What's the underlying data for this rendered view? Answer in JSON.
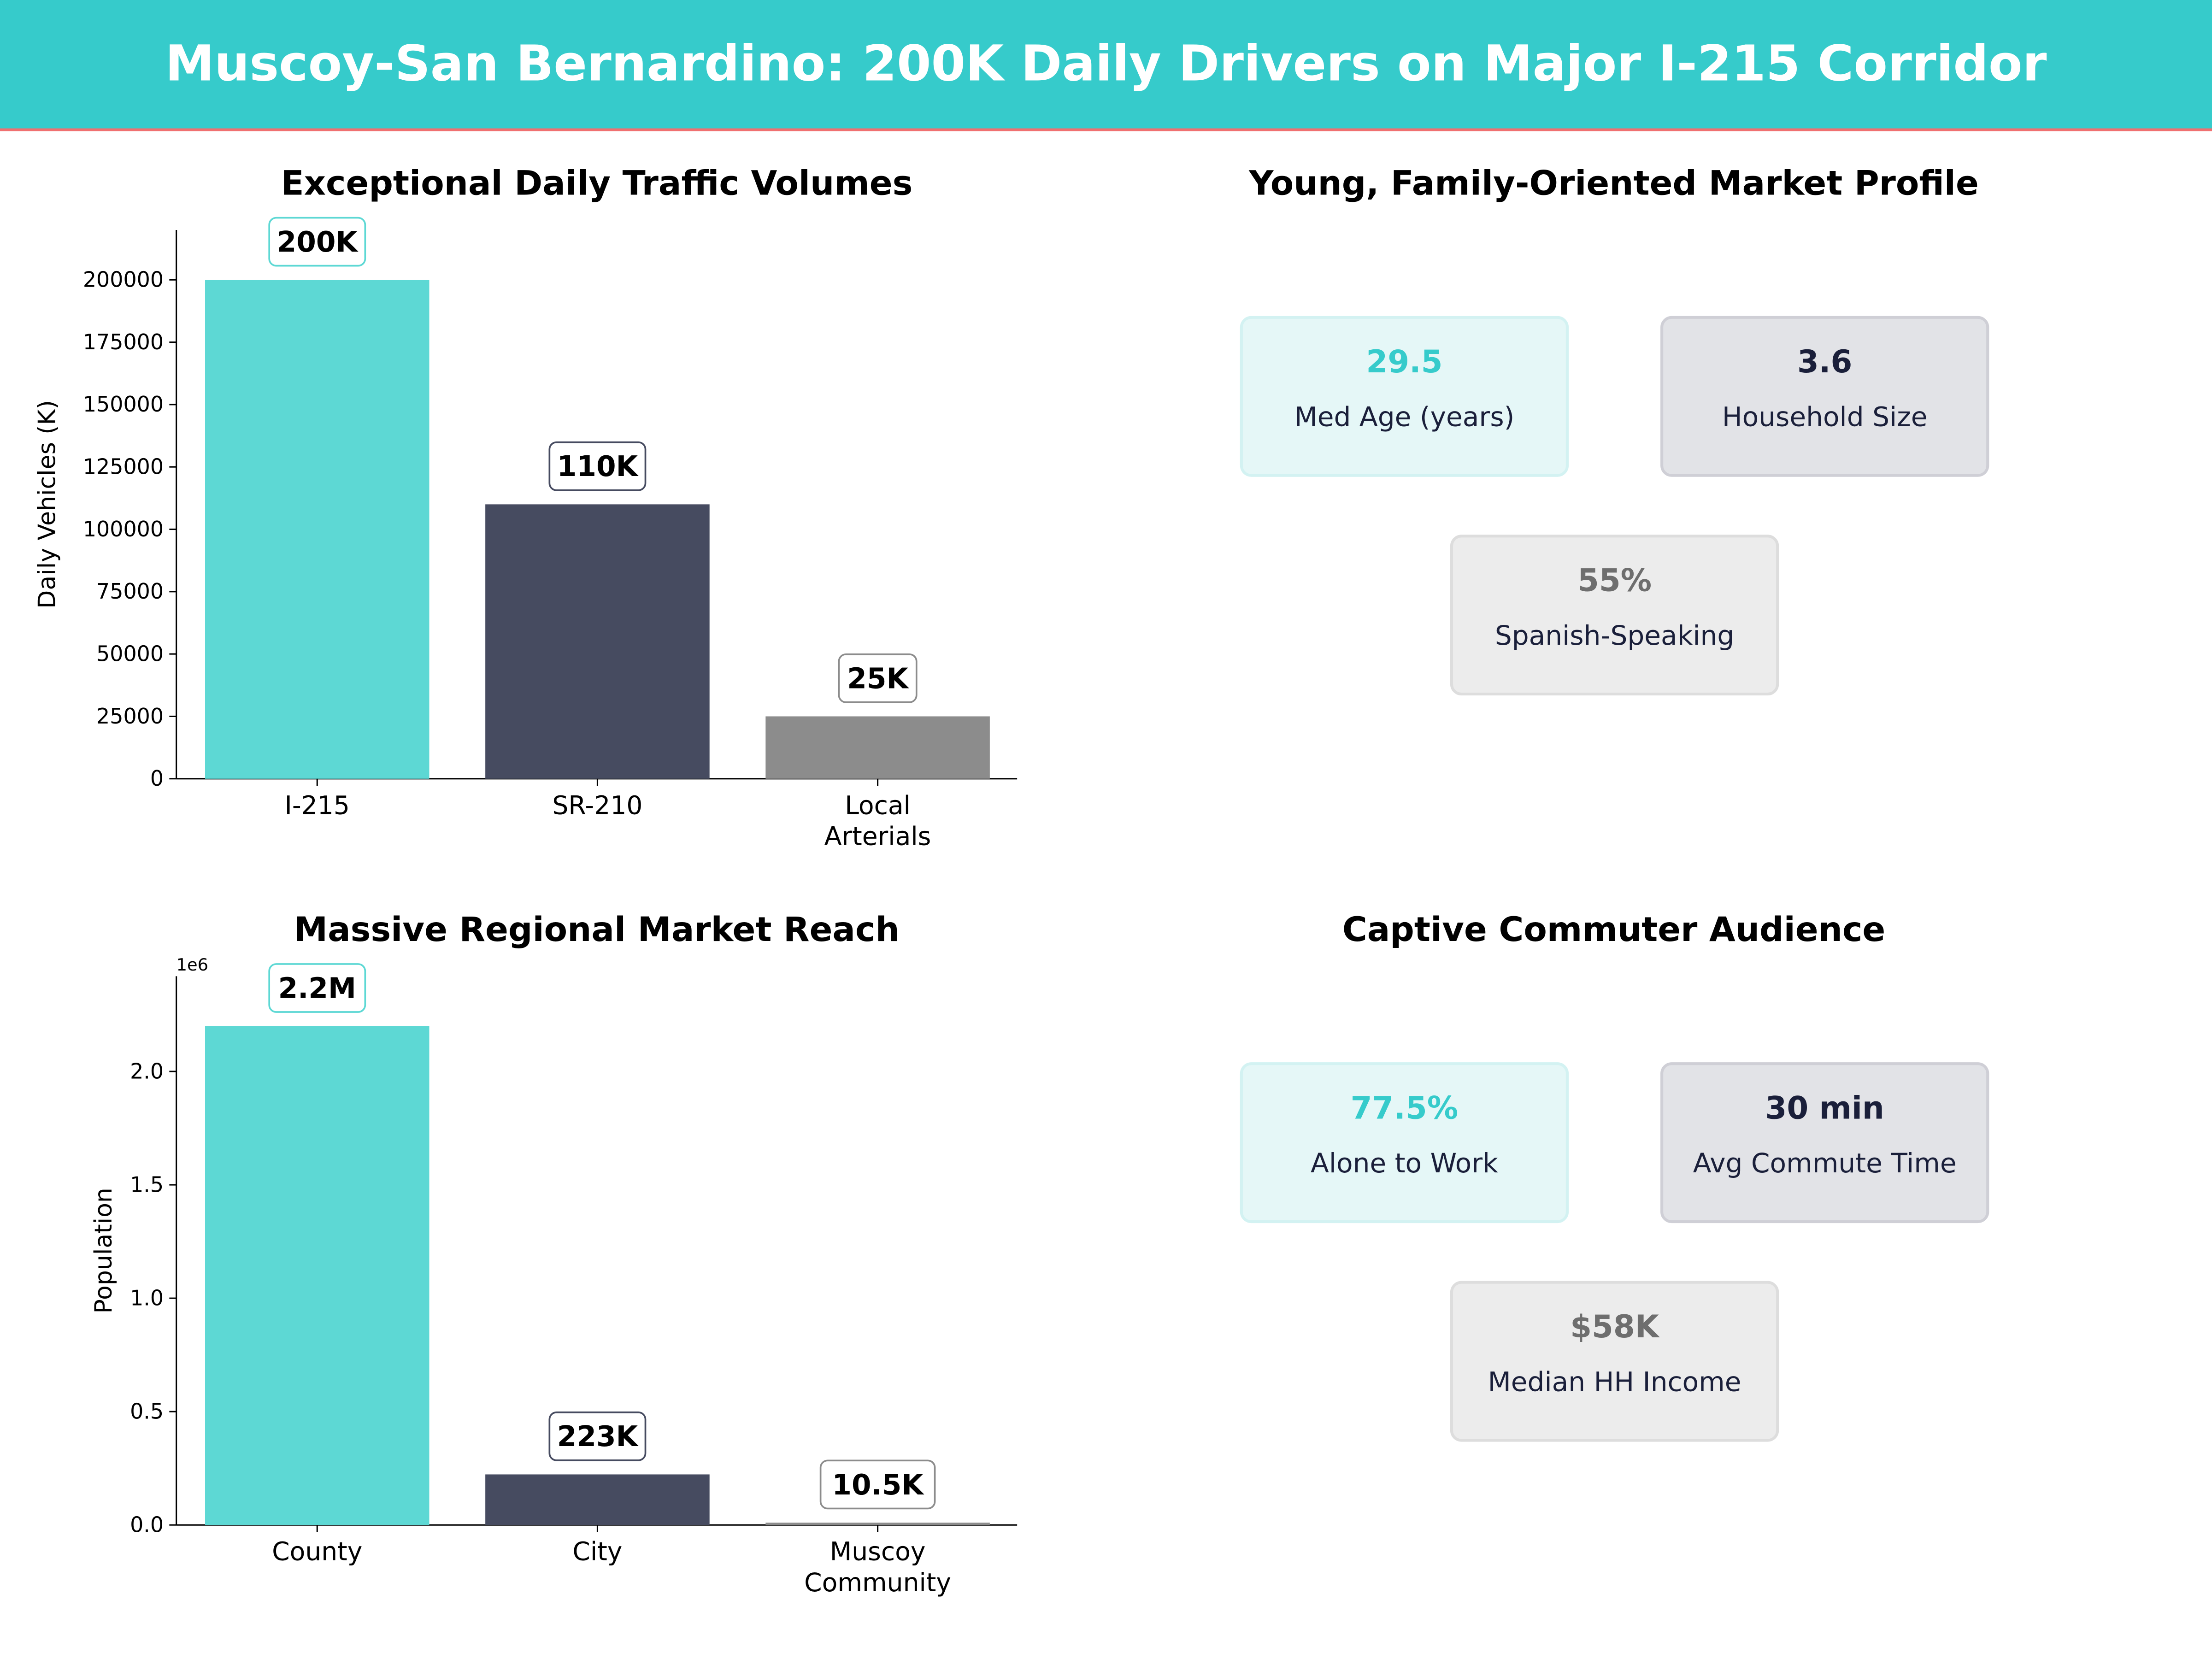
{
  "header": {
    "title": "Muscoy-San Bernardino: 200K Daily Drivers on Major I-215 Corridor",
    "background": "#36CBCB",
    "accent_line": "#F07070"
  },
  "chart_data": [
    {
      "type": "bar",
      "title": "Exceptional Daily Traffic Volumes",
      "xlabel": "",
      "ylabel": "Daily Vehicles (K)",
      "categories": [
        "I-215",
        "SR-210",
        "Local Arterials"
      ],
      "values": [
        200000,
        110000,
        25000
      ],
      "data_labels": [
        "200K",
        "110K",
        "25K"
      ],
      "colors": [
        "#5DD8D4",
        "#464B60",
        "#8C8C8C"
      ],
      "ylim": [
        0,
        220000
      ],
      "yticks": [
        0,
        25000,
        50000,
        75000,
        100000,
        125000,
        150000,
        175000,
        200000
      ],
      "ytick_labels": [
        "0",
        "25000",
        "50000",
        "75000",
        "100000",
        "125000",
        "150000",
        "175000",
        "200000"
      ],
      "offset_label": "",
      "grid": false
    },
    {
      "type": "bar",
      "title": "Massive Regional Market Reach",
      "xlabel": "",
      "ylabel": "Population",
      "categories": [
        "County",
        "City",
        "Muscoy Community"
      ],
      "values": [
        2200000,
        223000,
        10500
      ],
      "data_labels": [
        "2.2M",
        "223K",
        "10.5K"
      ],
      "colors": [
        "#5DD8D4",
        "#464B60",
        "#8C8C8C"
      ],
      "ylim": [
        0,
        2420000
      ],
      "yticks": [
        0,
        500000,
        1000000,
        1500000,
        2000000
      ],
      "ytick_labels": [
        "0.0",
        "0.5",
        "1.0",
        "1.5",
        "2.0"
      ],
      "offset_label": "1e6",
      "grid": false
    }
  ],
  "panels": {
    "market_profile": {
      "title": "Young, Family-Oriented Market Profile",
      "cards": [
        {
          "value": "29.5",
          "label": "Med Age (years)",
          "value_color": "#36CBCB",
          "bg": "#E5F7F7",
          "border": "#D3F2F2"
        },
        {
          "value": "3.6",
          "label": "Household Size",
          "value_color": "#1A1F3A",
          "bg": "#E2E3E7",
          "border": "#CFCFD6"
        },
        {
          "value": "55%",
          "label": "Spanish-Speaking",
          "value_color": "#6E6E6E",
          "bg": "#ECECEC",
          "border": "#DDDDDD"
        }
      ]
    },
    "commuter": {
      "title": "Captive Commuter Audience",
      "cards": [
        {
          "value": "77.5%",
          "label": "Alone to Work",
          "value_color": "#36CBCB",
          "bg": "#E5F7F7",
          "border": "#D3F2F2"
        },
        {
          "value": "30 min",
          "label": "Avg Commute Time",
          "value_color": "#1A1F3A",
          "bg": "#E2E3E7",
          "border": "#CFCFD6"
        },
        {
          "value": "$58K",
          "label": "Median HH Income",
          "value_color": "#6E6E6E",
          "bg": "#ECECEC",
          "border": "#DDDDDD"
        }
      ]
    }
  }
}
